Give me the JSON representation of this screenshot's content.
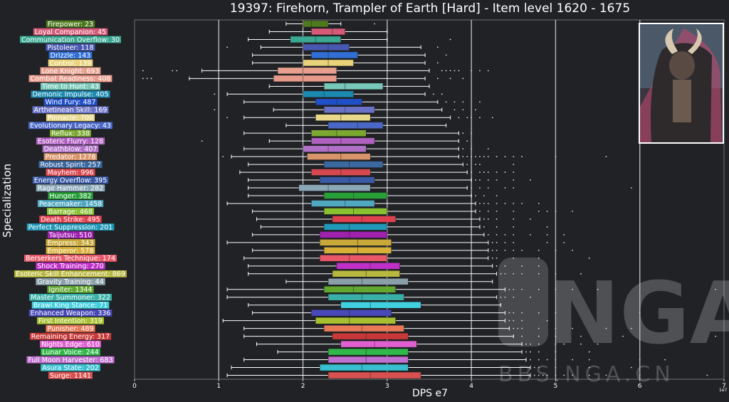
{
  "chart_data": {
    "type": "box",
    "title": "19397: Firehorn, Trampler of Earth [Hard] - Item level 1620 - 1675",
    "xlabel": "DPS e7",
    "ylabel": "Specialization",
    "x_scale_note": "1e7",
    "xlim": [
      0,
      7
    ],
    "xticks": [
      "0",
      "1",
      "2",
      "3",
      "4",
      "5",
      "6",
      "7"
    ],
    "watermark": {
      "logo": "NGA",
      "site": "BBS.NGA.CN"
    },
    "boss_portrait": "horned-earth-boss",
    "specs": [
      {
        "label": "Firepower: 23",
        "color": "#4e7a1e",
        "q1": 2.0,
        "median": 2.1,
        "q3": 2.3,
        "wlo": 1.8,
        "whi": 2.45,
        "out": [
          2.85
        ]
      },
      {
        "label": "Loyal Companion: 45",
        "color": "#d65a78",
        "q1": 2.1,
        "median": 2.35,
        "q3": 2.5,
        "wlo": 1.6,
        "whi": 3.0,
        "out": []
      },
      {
        "label": "Communication Overflow: 30",
        "color": "#3aa892",
        "q1": 1.85,
        "median": 2.15,
        "q3": 2.45,
        "wlo": 1.35,
        "whi": 3.0,
        "out": [
          3.75
        ]
      },
      {
        "label": "Pistoleer: 118",
        "color": "#4858b0",
        "q1": 2.0,
        "median": 2.3,
        "q3": 2.55,
        "wlo": 1.5,
        "whi": 3.4,
        "out": [
          1.1,
          3.6
        ]
      },
      {
        "label": "Drizzle: 143",
        "color": "#2f6fd6",
        "q1": 2.1,
        "median": 2.3,
        "q3": 2.65,
        "wlo": 1.4,
        "whi": 3.45,
        "out": [
          3.7
        ]
      },
      {
        "label": "Control: 139",
        "color": "#e8d27a",
        "q1": 2.0,
        "median": 2.3,
        "q3": 2.6,
        "wlo": 1.4,
        "whi": 3.45,
        "out": [
          3.6
        ]
      },
      {
        "label": "Lone Knight: 693",
        "color": "#e8a08e",
        "q1": 1.7,
        "median": 2.0,
        "q3": 2.4,
        "wlo": 0.8,
        "whi": 3.5,
        "out": [
          0.1,
          0.45,
          0.5,
          3.65,
          3.7,
          3.75,
          3.8,
          3.85,
          4.0,
          4.1,
          4.2
        ]
      },
      {
        "label": "Combat Readiness: 408",
        "color": "#e89a8a",
        "q1": 1.65,
        "median": 2.0,
        "q3": 2.4,
        "wlo": 0.65,
        "whi": 3.45,
        "out": [
          0.1,
          0.15,
          0.2,
          3.6,
          3.75,
          3.9
        ]
      },
      {
        "label": "Time to Hunt: 43",
        "color": "#76c8b8",
        "q1": 2.25,
        "median": 2.5,
        "q3": 2.95,
        "wlo": 1.6,
        "whi": 3.5,
        "out": []
      },
      {
        "label": "Demonic Impulse: 405",
        "color": "#1c8ab0",
        "q1": 2.0,
        "median": 2.25,
        "q3": 2.6,
        "wlo": 1.1,
        "whi": 3.45,
        "out": [
          0.95,
          3.55,
          3.65
        ]
      },
      {
        "label": "Wind Fury: 487",
        "color": "#2050c8",
        "q1": 2.15,
        "median": 2.4,
        "q3": 2.7,
        "wlo": 1.3,
        "whi": 3.6,
        "out": [
          3.7,
          3.8,
          3.9,
          4.1
        ]
      },
      {
        "label": "Arthetinean Skill: 169",
        "color": "#6a72c8",
        "q1": 2.25,
        "median": 2.5,
        "q3": 2.85,
        "wlo": 1.65,
        "whi": 3.65,
        "out": [
          0.95,
          3.8,
          3.9,
          4.05
        ]
      },
      {
        "label": "Pinnacle: 700",
        "color": "#e8d88a",
        "q1": 2.15,
        "median": 2.45,
        "q3": 2.8,
        "wlo": 1.3,
        "whi": 3.75,
        "out": [
          1.1,
          3.85,
          3.95,
          4.0,
          4.1,
          4.25
        ]
      },
      {
        "label": "Evolutionary Legacy: 43",
        "color": "#4a68c8",
        "q1": 2.3,
        "median": 2.65,
        "q3": 2.95,
        "wlo": 1.8,
        "whi": 3.7,
        "out": []
      },
      {
        "label": "Reflux: 338",
        "color": "#7aa830",
        "q1": 2.1,
        "median": 2.4,
        "q3": 2.75,
        "wlo": 1.3,
        "whi": 3.85,
        "out": [
          3.9,
          4.0
        ]
      },
      {
        "label": "Esoteric Flurry: 128",
        "color": "#b060c0",
        "q1": 2.1,
        "median": 2.45,
        "q3": 2.85,
        "wlo": 1.6,
        "whi": 3.85,
        "out": [
          0.8,
          3.95
        ]
      },
      {
        "label": "Deathblow: 407",
        "color": "#b070c8",
        "q1": 2.0,
        "median": 2.3,
        "q3": 2.75,
        "wlo": 1.3,
        "whi": 3.85,
        "out": [
          3.9,
          4.0,
          4.2
        ]
      },
      {
        "label": "Predator: 1278",
        "color": "#d8946a",
        "q1": 2.05,
        "median": 2.45,
        "q3": 2.8,
        "wlo": 1.15,
        "whi": 3.85,
        "out": [
          1.05,
          3.9,
          3.95,
          4.0,
          4.05,
          4.1,
          4.15,
          4.2,
          4.3,
          4.4,
          4.5,
          4.6,
          5.0,
          5.6
        ]
      },
      {
        "label": "Robust Spirit: 257",
        "color": "#3a68a0",
        "q1": 2.25,
        "median": 2.55,
        "q3": 2.95,
        "wlo": 1.35,
        "whi": 3.9,
        "out": [
          3.95,
          4.05,
          4.1,
          4.5
        ]
      },
      {
        "label": "Mayhem: 996",
        "color": "#d84850",
        "q1": 2.1,
        "median": 2.45,
        "q3": 2.8,
        "wlo": 1.25,
        "whi": 3.95,
        "out": [
          4.0,
          4.1,
          4.15,
          4.2,
          4.3,
          4.4,
          4.5
        ]
      },
      {
        "label": "Energy Overflow: 395",
        "color": "#3a5aa8",
        "q1": 2.2,
        "median": 2.55,
        "q3": 2.85,
        "wlo": 1.35,
        "whi": 4.0,
        "out": [
          4.05,
          4.1,
          4.2,
          4.3,
          4.5,
          4.7
        ]
      },
      {
        "label": "Rage Hammer: 282",
        "color": "#8aa8b8",
        "q1": 1.95,
        "median": 2.3,
        "q3": 2.8,
        "wlo": 1.35,
        "whi": 3.95,
        "out": [
          4.0,
          4.1,
          4.2,
          4.4,
          4.5,
          5.9
        ]
      },
      {
        "label": "Hunger: 382",
        "color": "#28a038",
        "q1": 2.25,
        "median": 2.6,
        "q3": 3.0,
        "wlo": 1.35,
        "whi": 4.0,
        "out": [
          4.05,
          4.15,
          4.3
        ]
      },
      {
        "label": "Peacemaker: 1458",
        "color": "#50a8c0",
        "q1": 2.1,
        "median": 2.5,
        "q3": 2.85,
        "wlo": 1.1,
        "whi": 4.05,
        "out": [
          4.1,
          4.15,
          4.2,
          4.3,
          4.4,
          4.5,
          4.6,
          4.8
        ]
      },
      {
        "label": "Barrage: 468",
        "color": "#88c030",
        "q1": 2.25,
        "median": 2.6,
        "q3": 3.0,
        "wlo": 1.4,
        "whi": 4.05,
        "out": [
          4.1,
          4.2,
          4.3,
          4.5,
          4.8,
          4.9,
          5.0,
          5.2
        ]
      },
      {
        "label": "Death Strike: 495",
        "color": "#e04050",
        "q1": 2.35,
        "median": 2.7,
        "q3": 3.1,
        "wlo": 1.45,
        "whi": 4.1,
        "out": [
          4.15,
          4.2,
          4.3,
          4.5,
          4.7
        ]
      },
      {
        "label": "Perfect Suppression: 201",
        "color": "#2098b8",
        "q1": 2.25,
        "median": 2.55,
        "q3": 3.0,
        "wlo": 1.5,
        "whi": 4.1,
        "out": [
          4.15,
          4.3,
          4.5,
          4.9
        ]
      },
      {
        "label": "Taijutsu: 510",
        "color": "#a020b0",
        "q1": 2.2,
        "median": 2.55,
        "q3": 3.0,
        "wlo": 1.4,
        "whi": 4.15,
        "out": [
          4.2,
          4.3,
          4.4,
          4.5,
          4.7,
          4.9,
          5.1
        ]
      },
      {
        "label": "Empress: 343",
        "color": "#c8a838",
        "q1": 2.2,
        "median": 2.65,
        "q3": 3.05,
        "wlo": 1.1,
        "whi": 4.2,
        "out": [
          4.25,
          4.3,
          4.4,
          4.5,
          4.9,
          5.1
        ]
      },
      {
        "label": "Emperor: 578",
        "color": "#d8b038",
        "q1": 2.25,
        "median": 2.65,
        "q3": 3.05,
        "wlo": 1.4,
        "whi": 4.2,
        "out": [
          4.25,
          4.3,
          4.4,
          4.5,
          4.6,
          4.8,
          5.0,
          5.2
        ]
      },
      {
        "label": "Berserkers Technique: 174",
        "color": "#e85868",
        "q1": 2.2,
        "median": 2.55,
        "q3": 3.0,
        "wlo": 1.3,
        "whi": 4.2,
        "out": [
          4.25,
          4.3,
          4.5,
          4.8,
          5.4
        ]
      },
      {
        "label": "Shock Training: 270",
        "color": "#c030c8",
        "q1": 2.4,
        "median": 2.8,
        "q3": 3.15,
        "wlo": 1.35,
        "whi": 4.25,
        "out": [
          4.3,
          4.4,
          4.6,
          4.8
        ]
      },
      {
        "label": "Esoteric Skill Enhancement: 869",
        "color": "#b8b840",
        "q1": 2.35,
        "median": 2.75,
        "q3": 3.15,
        "wlo": 1.35,
        "whi": 4.3,
        "out": [
          4.35,
          4.4,
          4.5,
          4.6,
          4.8,
          5.0,
          5.3
        ]
      },
      {
        "label": "Gravity Training: 44",
        "color": "#8aa0a8",
        "q1": 2.3,
        "median": 2.7,
        "q3": 3.25,
        "wlo": 1.8,
        "whi": 4.25,
        "out": []
      },
      {
        "label": "Igniter: 1344",
        "color": "#60a830",
        "q1": 2.25,
        "median": 2.6,
        "q3": 3.1,
        "wlo": 1.1,
        "whi": 4.4,
        "out": [
          4.45,
          4.5,
          4.6,
          4.8,
          5.0,
          5.2,
          5.5,
          6.9
        ]
      },
      {
        "label": "Master Summoner: 322",
        "color": "#38b0a8",
        "q1": 2.3,
        "median": 2.7,
        "q3": 3.2,
        "wlo": 1.1,
        "whi": 4.3,
        "out": [
          4.35,
          4.4,
          4.5,
          4.7
        ]
      },
      {
        "label": "Brawl King Stance: 71",
        "color": "#40d0e0",
        "q1": 2.45,
        "median": 2.8,
        "q3": 3.4,
        "wlo": 1.35,
        "whi": 4.35,
        "out": []
      },
      {
        "label": "Enhanced Weapon: 336",
        "color": "#4848b8",
        "q1": 2.1,
        "median": 2.55,
        "q3": 3.05,
        "wlo": 1.4,
        "whi": 4.4,
        "out": [
          4.45,
          4.5,
          4.6,
          4.8,
          5.0,
          6.0
        ]
      },
      {
        "label": "First Intention: 319",
        "color": "#a8c030",
        "q1": 2.15,
        "median": 2.55,
        "q3": 3.1,
        "wlo": 1.05,
        "whi": 4.4,
        "out": [
          4.45,
          4.5,
          4.6,
          4.9
        ]
      },
      {
        "label": "Punisher: 489",
        "color": "#e87858",
        "q1": 2.25,
        "median": 2.7,
        "q3": 3.2,
        "wlo": 1.3,
        "whi": 4.45,
        "out": [
          4.5,
          4.55,
          4.6,
          4.8,
          5.0,
          5.2,
          5.6,
          5.9
        ]
      },
      {
        "label": "Remaining Energy: 317",
        "color": "#c83838",
        "q1": 2.35,
        "median": 2.75,
        "q3": 3.25,
        "wlo": 1.3,
        "whi": 4.5,
        "out": [
          4.6,
          4.8,
          5.0,
          5.3,
          5.8,
          6.9
        ]
      },
      {
        "label": "Nights Edge: 610",
        "color": "#e060d0",
        "q1": 2.45,
        "median": 2.85,
        "q3": 3.35,
        "wlo": 1.45,
        "whi": 4.6,
        "out": [
          4.65,
          4.7,
          4.8,
          5.0,
          5.1,
          5.3,
          5.5
        ]
      },
      {
        "label": "Lunar Voice: 244",
        "color": "#30b848",
        "q1": 2.3,
        "median": 2.75,
        "q3": 3.25,
        "wlo": 1.7,
        "whi": 4.6,
        "out": [
          4.65,
          4.7,
          4.8,
          5.0,
          5.4
        ]
      },
      {
        "label": "Full Moon Harvester: 683",
        "color": "#c070d0",
        "q1": 2.3,
        "median": 2.75,
        "q3": 3.25,
        "wlo": 1.3,
        "whi": 4.65,
        "out": [
          4.7,
          4.8,
          4.9,
          5.0,
          5.2,
          5.4,
          6.0,
          6.3
        ]
      },
      {
        "label": "Asura State: 202",
        "color": "#38c0d0",
        "q1": 2.2,
        "median": 2.7,
        "q3": 3.25,
        "wlo": 1.15,
        "whi": 4.7,
        "out": [
          4.75,
          4.8,
          5.0,
          5.4,
          5.9
        ]
      },
      {
        "label": "Surge: 1141",
        "color": "#d85050",
        "q1": 2.3,
        "median": 2.8,
        "q3": 3.4,
        "wlo": 1.1,
        "whi": 4.7,
        "out": [
          4.75,
          4.8,
          4.85,
          4.9,
          5.0,
          5.1,
          5.2,
          5.4,
          5.6,
          6.0,
          6.8
        ]
      }
    ]
  }
}
